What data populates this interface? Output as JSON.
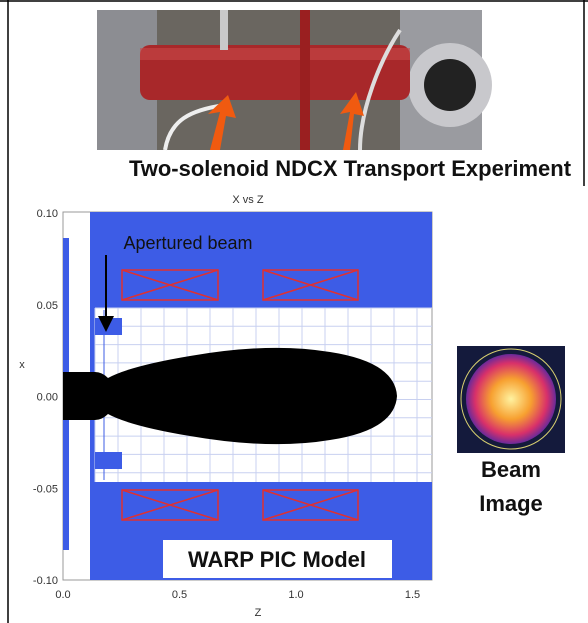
{
  "photo_caption": "Two-solenoid NDCX Transport Experiment",
  "plot": {
    "title": "X vs Z",
    "x_label": "Z",
    "y_label": "x",
    "y_ticks": [
      "0.10",
      "0.05",
      "0.00",
      "-0.05",
      "-0.10"
    ],
    "x_ticks": [
      "0.0",
      "0.5",
      "1.0",
      "1.5"
    ],
    "annotation": "Apertured beam",
    "label": "WARP PIC Model"
  },
  "beam_image": {
    "label": [
      "Beam",
      "Image"
    ]
  }
}
